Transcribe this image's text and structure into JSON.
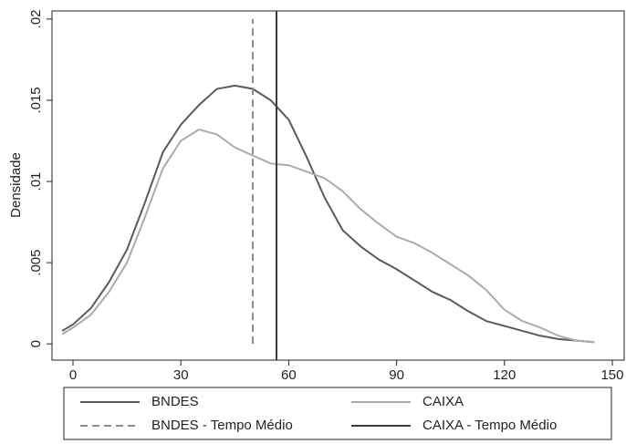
{
  "chart_data": {
    "type": "line",
    "ylabel": "Densidade",
    "xlim": [
      -5.84,
      153.3
    ],
    "ylim": [
      -0.001,
      0.0205
    ],
    "xticks": [
      0,
      30,
      60,
      90,
      120,
      150
    ],
    "yticks": [
      0,
      {
        "value": 0.005,
        "label": ".005"
      },
      {
        "value": 0.01,
        "label": ".01"
      },
      {
        "value": 0.015,
        "label": ".015"
      },
      {
        "value": 0.02,
        "label": ".02"
      }
    ],
    "series": [
      {
        "name": "BNDES",
        "color": "#5a5a5a",
        "dash": "solid",
        "x": [
          -3,
          0,
          5,
          10,
          15,
          20,
          25,
          30,
          35,
          40,
          45,
          50,
          55,
          60,
          65,
          70,
          75,
          80,
          85,
          90,
          95,
          100,
          105,
          110,
          115,
          120,
          125,
          130,
          135,
          140,
          145
        ],
        "values": [
          0.0008,
          0.0012,
          0.0022,
          0.0038,
          0.0058,
          0.0087,
          0.0118,
          0.0135,
          0.0147,
          0.0157,
          0.0159,
          0.0157,
          0.015,
          0.0138,
          0.0115,
          0.009,
          0.007,
          0.006,
          0.0052,
          0.0046,
          0.0039,
          0.0032,
          0.0027,
          0.002,
          0.0014,
          0.0011,
          0.0008,
          0.0005,
          0.0003,
          0.0002,
          0.0001
        ]
      },
      {
        "name": "CAIXA",
        "color": "#ababab",
        "dash": "solid",
        "x": [
          -3,
          0,
          5,
          10,
          15,
          20,
          25,
          30,
          35,
          40,
          45,
          50,
          55,
          60,
          65,
          70,
          75,
          80,
          85,
          90,
          95,
          100,
          105,
          110,
          115,
          120,
          125,
          130,
          135,
          140,
          145
        ],
        "values": [
          0.0006,
          0.001,
          0.0018,
          0.0032,
          0.005,
          0.0078,
          0.0108,
          0.0125,
          0.0132,
          0.0129,
          0.0121,
          0.0116,
          0.0111,
          0.011,
          0.0106,
          0.0102,
          0.0094,
          0.0083,
          0.0074,
          0.0066,
          0.0062,
          0.0056,
          0.0049,
          0.0042,
          0.0033,
          0.0021,
          0.0014,
          0.001,
          0.0005,
          0.0002,
          0.0001
        ]
      },
      {
        "name": "BNDES - Tempo Médio",
        "color": "#8c8c8c",
        "dash": "dashed",
        "x": [
          50,
          50
        ],
        "values": [
          0,
          0.02
        ]
      },
      {
        "name": "CAIXA - Tempo Médio",
        "color": "#3c3c3c",
        "dash": "solid",
        "x": [
          56.6,
          56.6
        ],
        "values": [
          -0.001,
          0.0205
        ]
      }
    ]
  }
}
